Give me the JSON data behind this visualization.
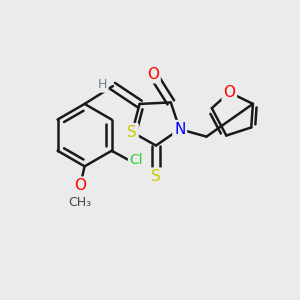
{
  "bg_color": "#ebebeb",
  "bond_color": "#1a1a1a",
  "bond_width": 1.8,
  "atom_colors": {
    "O": "#ff0000",
    "N": "#0000ff",
    "S": "#cccc00",
    "Cl": "#33cc33",
    "H": "#708090"
  },
  "font_size": 10
}
